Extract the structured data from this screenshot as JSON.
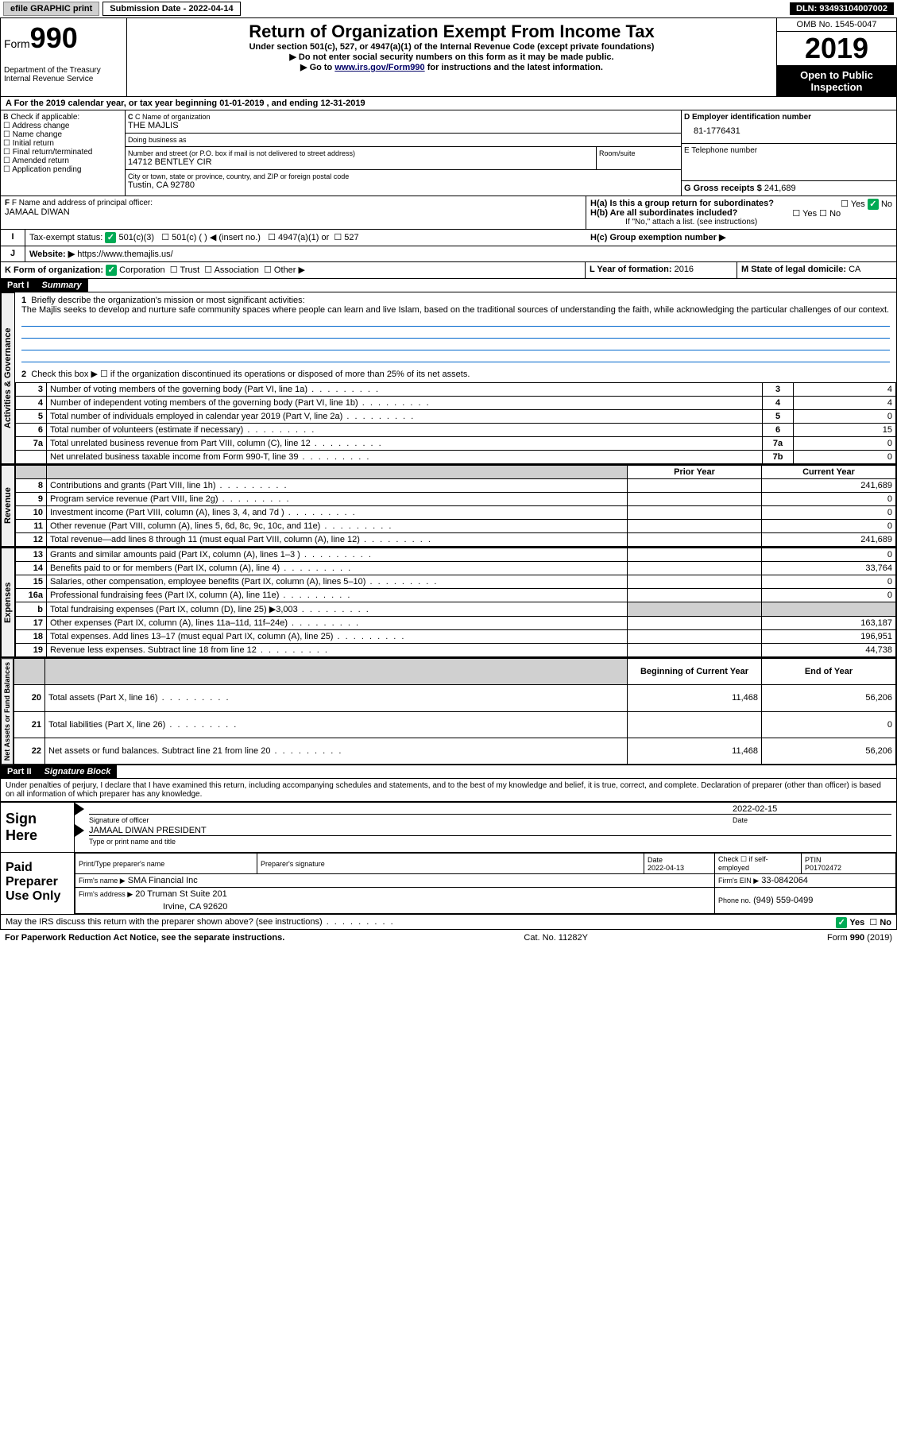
{
  "topbar": {
    "efile": "efile GRAPHIC print",
    "sub_label": "Submission Date - 2022-04-14",
    "dln": "DLN: 93493104007002"
  },
  "header": {
    "form_prefix": "Form",
    "form_num": "990",
    "dept": "Department of the Treasury\nInternal Revenue Service",
    "title": "Return of Organization Exempt From Income Tax",
    "sub1": "Under section 501(c), 527, or 4947(a)(1) of the Internal Revenue Code (except private foundations)",
    "sub2": "▶ Do not enter social security numbers on this form as it may be made public.",
    "sub3a": "▶ Go to ",
    "sub3_link": "www.irs.gov/Form990",
    "sub3b": " for instructions and the latest information.",
    "omb": "OMB No. 1545-0047",
    "year": "2019",
    "open": "Open to Public Inspection"
  },
  "sectionA": "A    For the 2019 calendar year, or tax year beginning 01-01-2019   , and ending 12-31-2019",
  "boxB": {
    "label": "B Check if applicable:",
    "opts": [
      "Address change",
      "Name change",
      "Initial return",
      "Final return/terminated",
      "Amended return",
      "Application pending"
    ]
  },
  "boxC": {
    "label": "C Name of organization",
    "value": "THE MAJLIS",
    "dba_label": "Doing business as",
    "addr_label": "Number and street (or P.O. box if mail is not delivered to street address)",
    "room_label": "Room/suite",
    "addr": "14712 BENTLEY CIR",
    "city_label": "City or town, state or province, country, and ZIP or foreign postal code",
    "city": "Tustin, CA  92780"
  },
  "boxD": {
    "label": "D Employer identification number",
    "value": "81-1776431"
  },
  "boxE": {
    "label": "E Telephone number"
  },
  "boxG": {
    "label": "G Gross receipts $",
    "value": "241,689"
  },
  "boxF": {
    "label": "F Name and address of principal officer:",
    "value": "JAMAAL DIWAN"
  },
  "boxH": {
    "a": "H(a)  Is this a group return for subordinates?",
    "b": "H(b)  Are all subordinates included?",
    "note": "If \"No,\" attach a list. (see instructions)",
    "c": "H(c)  Group exemption number ▶"
  },
  "yesno": {
    "yes": "Yes",
    "no": "No"
  },
  "rowI": "Tax-exempt status:",
  "rowI_opts": [
    "501(c)(3)",
    "501(c) (  ) ◀ (insert no.)",
    "4947(a)(1) or",
    "527"
  ],
  "rowJ": {
    "label": "Website: ▶",
    "value": "https://www.themajlis.us/"
  },
  "rowK": "K Form of organization:",
  "rowK_opts": [
    "Corporation",
    "Trust",
    "Association",
    "Other ▶"
  ],
  "rowL": {
    "label": "L Year of formation:",
    "value": "2016"
  },
  "rowM": {
    "label": "M State of legal domicile:",
    "value": "CA"
  },
  "part1": {
    "num": "Part I",
    "title": "Summary"
  },
  "p1_1": "Briefly describe the organization's mission or most significant activities:",
  "p1_mission": "The Majlis seeks to develop and nurture safe community spaces where people can learn and live Islam, based on the traditional sources of understanding the faith, while acknowledging the particular challenges of our context.",
  "p1_2": "Check this box ▶ ☐  if the organization discontinued its operations or disposed of more than 25% of its net assets.",
  "lines_gov": [
    {
      "n": "3",
      "t": "Number of voting members of the governing body (Part VI, line 1a)",
      "box": "3",
      "v": "4"
    },
    {
      "n": "4",
      "t": "Number of independent voting members of the governing body (Part VI, line 1b)",
      "box": "4",
      "v": "4"
    },
    {
      "n": "5",
      "t": "Total number of individuals employed in calendar year 2019 (Part V, line 2a)",
      "box": "5",
      "v": "0"
    },
    {
      "n": "6",
      "t": "Total number of volunteers (estimate if necessary)",
      "box": "6",
      "v": "15"
    },
    {
      "n": "7a",
      "t": "Total unrelated business revenue from Part VIII, column (C), line 12",
      "box": "7a",
      "v": "0"
    },
    {
      "n": "",
      "t": "Net unrelated business taxable income from Form 990-T, line 39",
      "box": "7b",
      "v": "0"
    }
  ],
  "col_hdrs": {
    "b": "",
    "prior": "Prior Year",
    "curr": "Current Year"
  },
  "lines_rev": [
    {
      "n": "8",
      "t": "Contributions and grants (Part VIII, line 1h)",
      "p": "",
      "c": "241,689"
    },
    {
      "n": "9",
      "t": "Program service revenue (Part VIII, line 2g)",
      "p": "",
      "c": "0"
    },
    {
      "n": "10",
      "t": "Investment income (Part VIII, column (A), lines 3, 4, and 7d )",
      "p": "",
      "c": "0"
    },
    {
      "n": "11",
      "t": "Other revenue (Part VIII, column (A), lines 5, 6d, 8c, 9c, 10c, and 11e)",
      "p": "",
      "c": "0"
    },
    {
      "n": "12",
      "t": "Total revenue—add lines 8 through 11 (must equal Part VIII, column (A), line 12)",
      "p": "",
      "c": "241,689"
    }
  ],
  "lines_exp": [
    {
      "n": "13",
      "t": "Grants and similar amounts paid (Part IX, column (A), lines 1–3 )",
      "p": "",
      "c": "0"
    },
    {
      "n": "14",
      "t": "Benefits paid to or for members (Part IX, column (A), line 4)",
      "p": "",
      "c": "33,764"
    },
    {
      "n": "15",
      "t": "Salaries, other compensation, employee benefits (Part IX, column (A), lines 5–10)",
      "p": "",
      "c": "0"
    },
    {
      "n": "16a",
      "t": "Professional fundraising fees (Part IX, column (A), line 11e)",
      "p": "",
      "c": "0"
    },
    {
      "n": "b",
      "t": "Total fundraising expenses (Part IX, column (D), line 25) ▶3,003",
      "p": "gray",
      "c": "gray"
    },
    {
      "n": "17",
      "t": "Other expenses (Part IX, column (A), lines 11a–11d, 11f–24e)",
      "p": "",
      "c": "163,187"
    },
    {
      "n": "18",
      "t": "Total expenses. Add lines 13–17 (must equal Part IX, column (A), line 25)",
      "p": "",
      "c": "196,951"
    },
    {
      "n": "19",
      "t": "Revenue less expenses. Subtract line 18 from line 12",
      "p": "",
      "c": "44,738"
    }
  ],
  "col_hdrs2": {
    "prior": "Beginning of Current Year",
    "curr": "End of Year"
  },
  "lines_net": [
    {
      "n": "20",
      "t": "Total assets (Part X, line 16)",
      "p": "11,468",
      "c": "56,206"
    },
    {
      "n": "21",
      "t": "Total liabilities (Part X, line 26)",
      "p": "",
      "c": "0"
    },
    {
      "n": "22",
      "t": "Net assets or fund balances. Subtract line 21 from line 20",
      "p": "11,468",
      "c": "56,206"
    }
  ],
  "side_labels": {
    "gov": "Activities & Governance",
    "rev": "Revenue",
    "exp": "Expenses",
    "net": "Net Assets or Fund Balances"
  },
  "part2": {
    "num": "Part II",
    "title": "Signature Block"
  },
  "p2_decl": "Under penalties of perjury, I declare that I have examined this return, including accompanying schedules and statements, and to the best of my knowledge and belief, it is true, correct, and complete. Declaration of preparer (other than officer) is based on all information of which preparer has any knowledge.",
  "sign": {
    "here": "Sign Here",
    "sig_label": "Signature of officer",
    "date": "2022-02-15",
    "date_label": "Date",
    "name": "JAMAAL DIWAN  PRESIDENT",
    "name_label": "Type or print name and title"
  },
  "paid": {
    "label": "Paid Preparer Use Only",
    "h1": "Print/Type preparer's name",
    "h2": "Preparer's signature",
    "h3": "Date",
    "h3v": "2022-04-13",
    "h4": "Check ☐ if self-employed",
    "h5": "PTIN",
    "h5v": "P01702472",
    "firm_label": "Firm's name   ▶",
    "firm": "SMA Financial Inc",
    "ein_label": "Firm's EIN ▶",
    "ein": "33-0842064",
    "addr_label": "Firm's address ▶",
    "addr": "20 Truman St Suite 201",
    "addr2": "Irvine, CA  92620",
    "phone_label": "Phone no.",
    "phone": "(949) 559-0499"
  },
  "discuss": "May the IRS discuss this return with the preparer shown above? (see instructions)",
  "footer": {
    "left": "For Paperwork Reduction Act Notice, see the separate instructions.",
    "mid": "Cat. No. 11282Y",
    "right": "Form 990 (2019)"
  }
}
